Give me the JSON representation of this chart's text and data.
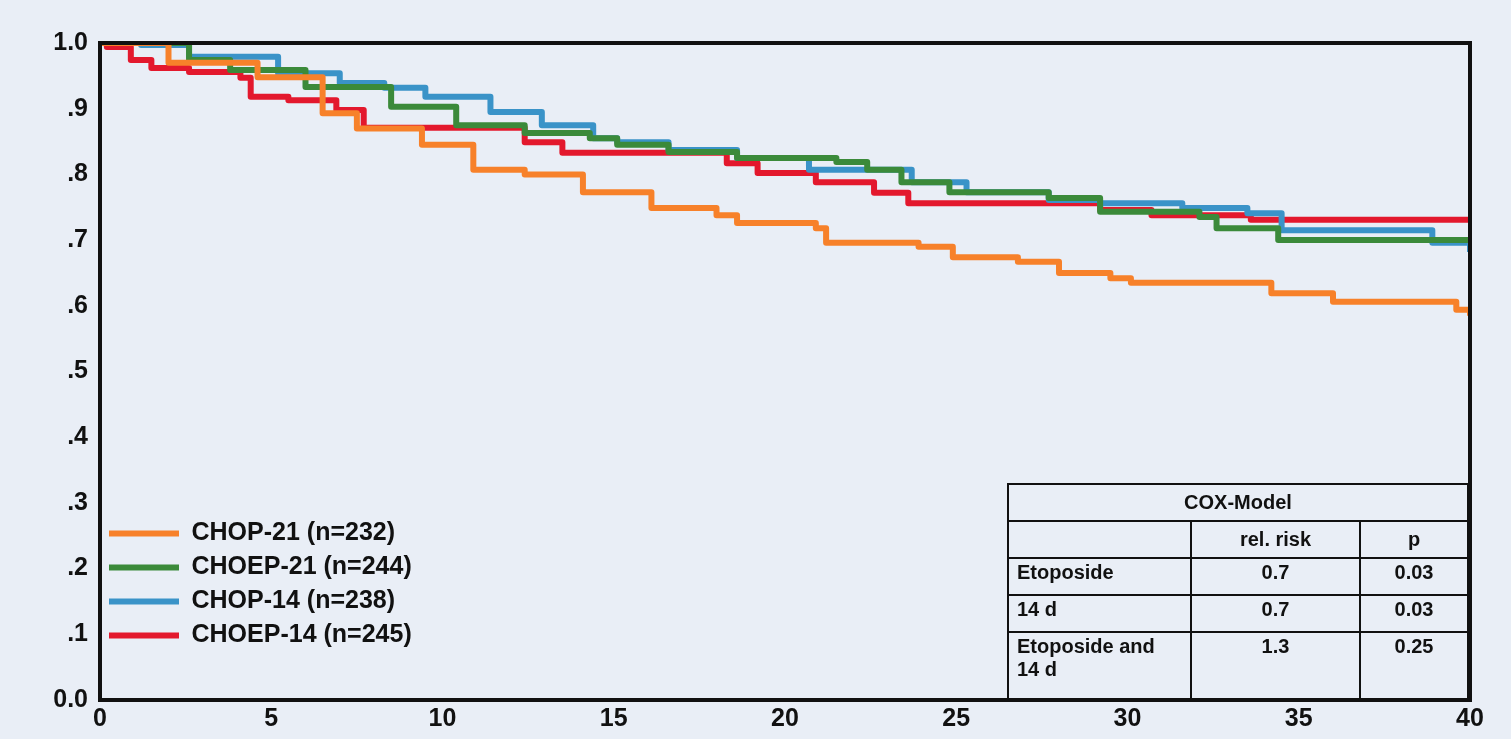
{
  "chart_data": {
    "type": "step",
    "xlim": [
      0,
      40
    ],
    "ylim": [
      0,
      1
    ],
    "xticks": [
      0,
      5,
      10,
      15,
      20,
      25,
      30,
      35,
      40
    ],
    "yticks": [
      {
        "value": 0,
        "label": "0.0"
      },
      {
        "value": 0.1,
        "label": ".1"
      },
      {
        "value": 0.2,
        "label": ".2"
      },
      {
        "value": 0.3,
        "label": ".3"
      },
      {
        "value": 0.4,
        "label": ".4"
      },
      {
        "value": 0.5,
        "label": ".5"
      },
      {
        "value": 0.6,
        "label": ".6"
      },
      {
        "value": 0.7,
        "label": ".7"
      },
      {
        "value": 0.8,
        "label": ".8"
      },
      {
        "value": 0.9,
        "label": ".9"
      },
      {
        "value": 1,
        "label": "1.0"
      }
    ],
    "grid": false,
    "legend": "bottom left",
    "marker": "none",
    "line_style": "solid",
    "series": [
      {
        "name": "CHOP-21 (n=232)",
        "color": "#f7812a",
        "x": [
          0,
          2,
          4.6,
          6.5,
          7.5,
          9.4,
          10.9,
          12.4,
          14.1,
          16.1,
          18,
          18.6,
          20.9,
          21.2,
          23.9,
          24.9,
          26.8,
          28,
          29.5,
          30.1,
          34.2,
          36,
          39.6,
          40
        ],
        "values": [
          1,
          0.97,
          0.948,
          0.893,
          0.87,
          0.845,
          0.807,
          0.8,
          0.773,
          0.749,
          0.738,
          0.726,
          0.718,
          0.696,
          0.69,
          0.674,
          0.667,
          0.65,
          0.642,
          0.635,
          0.619,
          0.606,
          0.594,
          0.585
        ]
      },
      {
        "name": "CHOEP-21 (n=244)",
        "color": "#3b8a3a",
        "x": [
          0,
          2.6,
          3.8,
          6,
          8.5,
          10.4,
          12.4,
          14.3,
          15.1,
          16.6,
          18.6,
          21.5,
          22.4,
          23.4,
          24.8,
          27.7,
          29.2,
          32.1,
          32.6,
          34.4,
          40
        ],
        "values": [
          1,
          0.974,
          0.959,
          0.933,
          0.903,
          0.875,
          0.863,
          0.855,
          0.845,
          0.834,
          0.825,
          0.819,
          0.807,
          0.788,
          0.773,
          0.764,
          0.743,
          0.735,
          0.718,
          0.7,
          0.7
        ]
      },
      {
        "name": "CHOP-14 (n=238)",
        "color": "#3a93c8",
        "x": [
          0,
          1.2,
          2.6,
          5.2,
          7,
          8.3,
          9.5,
          11.4,
          12.9,
          14.4,
          15.1,
          16.6,
          18.6,
          20.7,
          23.7,
          25.3,
          27.7,
          29.2,
          31.6,
          33.5,
          34.5,
          38.9,
          40
        ],
        "values": [
          1,
          0.997,
          0.979,
          0.954,
          0.939,
          0.932,
          0.918,
          0.895,
          0.875,
          0.855,
          0.849,
          0.837,
          0.825,
          0.807,
          0.788,
          0.773,
          0.761,
          0.756,
          0.749,
          0.741,
          0.715,
          0.696,
          0.682
        ]
      },
      {
        "name": "CHOEP-14 (n=245)",
        "color": "#e3182d",
        "x": [
          0,
          0.2,
          0.9,
          1.5,
          2.6,
          4.1,
          4.4,
          5.5,
          6.9,
          7.7,
          12.4,
          13.5,
          18.3,
          19.2,
          20.9,
          22.6,
          23.6,
          29.2,
          30.7,
          33.6,
          40
        ],
        "values": [
          1,
          0.994,
          0.974,
          0.962,
          0.956,
          0.947,
          0.918,
          0.913,
          0.898,
          0.871,
          0.849,
          0.833,
          0.817,
          0.802,
          0.788,
          0.772,
          0.756,
          0.746,
          0.738,
          0.731,
          0.731
        ]
      }
    ],
    "annotations": [
      "COX-Model",
      "rel. risk",
      "p",
      "Etoposide",
      "0.7",
      "0.03",
      "14 d",
      "0.7",
      "0.03",
      "Etoposide and 14 d",
      "1.3",
      "0.25"
    ]
  }
}
